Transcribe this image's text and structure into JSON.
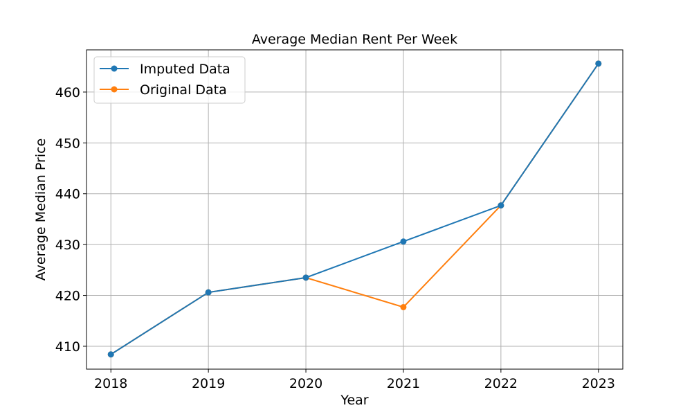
{
  "chart_data": {
    "type": "line",
    "title": "Average Median Rent Per Week",
    "xlabel": "Year",
    "ylabel": "Average Median Price",
    "x": [
      2018,
      2019,
      2020,
      2021,
      2022,
      2023
    ],
    "xticks": [
      "2018",
      "2019",
      "2020",
      "2021",
      "2022",
      "2023"
    ],
    "xlim": [
      2017.75,
      2023.25
    ],
    "yticks": [
      410,
      420,
      430,
      440,
      450,
      460
    ],
    "ylim": [
      405.5,
      468.3
    ],
    "grid": true,
    "legend_position": "upper-left",
    "series": [
      {
        "name": "Imputed Data",
        "color": "#1f77b4",
        "values": [
          408.4,
          420.6,
          423.5,
          430.6,
          437.7,
          465.6
        ]
      },
      {
        "name": "Original Data",
        "color": "#ff7f0e",
        "values": [
          408.4,
          420.6,
          423.5,
          417.7,
          437.7,
          465.6
        ]
      }
    ]
  }
}
